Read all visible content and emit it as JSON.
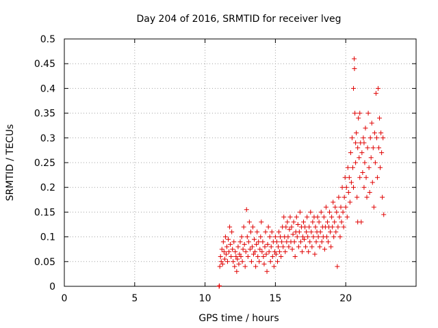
{
  "chart_data": {
    "type": "scatter",
    "title": "Day 204 of 2016, SRMTID for receiver lveg",
    "xlabel": "GPS time / hours",
    "ylabel": "SRMTID / TECUs",
    "xlim": [
      0,
      25
    ],
    "ylim": [
      0,
      0.5
    ],
    "xticks": [
      0,
      5,
      10,
      15,
      20
    ],
    "xtick_labels": [
      "0",
      "5",
      "10",
      "15",
      "20"
    ],
    "yticks": [
      0,
      0.05,
      0.1,
      0.15,
      0.2,
      0.25,
      0.3,
      0.35,
      0.4,
      0.45,
      0.5
    ],
    "ytick_labels": [
      "0",
      "0.05",
      "0.1",
      "0.15",
      "0.2",
      "0.25",
      "0.3",
      "0.35",
      "0.4",
      "0.45",
      "0.5"
    ],
    "grid": true,
    "marker": "+",
    "color": "#e00000",
    "series": [
      {
        "name": "SRMTID",
        "points": [
          [
            11.0,
            0.0
          ],
          [
            11.02,
            0.001
          ],
          [
            11.05,
            0.04
          ],
          [
            11.1,
            0.06
          ],
          [
            11.15,
            0.05
          ],
          [
            11.2,
            0.075
          ],
          [
            11.25,
            0.045
          ],
          [
            11.3,
            0.09
          ],
          [
            11.35,
            0.07
          ],
          [
            11.4,
            0.055
          ],
          [
            11.45,
            0.1
          ],
          [
            11.5,
            0.065
          ],
          [
            11.55,
            0.08
          ],
          [
            11.6,
            0.05
          ],
          [
            11.65,
            0.095
          ],
          [
            11.7,
            0.07
          ],
          [
            11.75,
            0.12
          ],
          [
            11.8,
            0.085
          ],
          [
            11.85,
            0.06
          ],
          [
            11.9,
            0.11
          ],
          [
            11.95,
            0.075
          ],
          [
            12.0,
            0.05
          ],
          [
            12.05,
            0.09
          ],
          [
            12.1,
            0.04
          ],
          [
            12.15,
            0.07
          ],
          [
            12.2,
            0.06
          ],
          [
            12.25,
            0.03
          ],
          [
            12.3,
            0.055
          ],
          [
            12.35,
            0.08
          ],
          [
            12.4,
            0.045
          ],
          [
            12.45,
            0.065
          ],
          [
            12.5,
            0.09
          ],
          [
            12.55,
            0.06
          ],
          [
            12.6,
            0.1
          ],
          [
            12.65,
            0.05
          ],
          [
            12.7,
            0.075
          ],
          [
            12.75,
            0.12
          ],
          [
            12.8,
            0.085
          ],
          [
            12.85,
            0.04
          ],
          [
            12.9,
            0.07
          ],
          [
            12.95,
            0.155
          ],
          [
            13.0,
            0.1
          ],
          [
            13.05,
            0.06
          ],
          [
            13.1,
            0.09
          ],
          [
            13.15,
            0.13
          ],
          [
            13.2,
            0.075
          ],
          [
            13.25,
            0.11
          ],
          [
            13.3,
            0.05
          ],
          [
            13.35,
            0.08
          ],
          [
            13.4,
            0.12
          ],
          [
            13.45,
            0.065
          ],
          [
            13.5,
            0.095
          ],
          [
            13.55,
            0.07
          ],
          [
            13.6,
            0.04
          ],
          [
            13.65,
            0.085
          ],
          [
            13.7,
            0.11
          ],
          [
            13.75,
            0.06
          ],
          [
            13.8,
            0.09
          ],
          [
            13.85,
            0.05
          ],
          [
            13.9,
            0.075
          ],
          [
            13.95,
            0.1
          ],
          [
            14.0,
            0.13
          ],
          [
            14.05,
            0.07
          ],
          [
            14.1,
            0.09
          ],
          [
            14.15,
            0.06
          ],
          [
            14.2,
            0.045
          ],
          [
            14.25,
            0.08
          ],
          [
            14.3,
            0.11
          ],
          [
            14.35,
            0.065
          ],
          [
            14.4,
            0.03
          ],
          [
            14.45,
            0.085
          ],
          [
            14.5,
            0.12
          ],
          [
            14.55,
            0.07
          ],
          [
            14.6,
            0.1
          ],
          [
            14.65,
            0.05
          ],
          [
            14.7,
            0.08
          ],
          [
            14.75,
            0.11
          ],
          [
            14.8,
            0.06
          ],
          [
            14.85,
            0.09
          ],
          [
            14.9,
            0.04
          ],
          [
            14.95,
            0.07
          ],
          [
            15.0,
            0.1
          ],
          [
            15.05,
            0.065
          ],
          [
            15.1,
            0.09
          ],
          [
            15.15,
            0.05
          ],
          [
            15.2,
            0.08
          ],
          [
            15.25,
            0.11
          ],
          [
            15.3,
            0.07
          ],
          [
            15.35,
            0.1
          ],
          [
            15.4,
            0.06
          ],
          [
            15.45,
            0.09
          ],
          [
            15.5,
            0.12
          ],
          [
            15.55,
            0.08
          ],
          [
            15.6,
            0.14
          ],
          [
            15.65,
            0.1
          ],
          [
            15.7,
            0.07
          ],
          [
            15.75,
            0.12
          ],
          [
            15.8,
            0.09
          ],
          [
            15.85,
            0.13
          ],
          [
            15.9,
            0.1
          ],
          [
            15.95,
            0.08
          ],
          [
            16.0,
            0.115
          ],
          [
            16.05,
            0.14
          ],
          [
            16.1,
            0.09
          ],
          [
            16.15,
            0.12
          ],
          [
            16.2,
            0.075
          ],
          [
            16.25,
            0.105
          ],
          [
            16.3,
            0.13
          ],
          [
            16.35,
            0.09
          ],
          [
            16.4,
            0.06
          ],
          [
            16.45,
            0.11
          ],
          [
            16.5,
            0.14
          ],
          [
            16.55,
            0.1
          ],
          [
            16.6,
            0.125
          ],
          [
            16.65,
            0.08
          ],
          [
            16.7,
            0.11
          ],
          [
            16.75,
            0.15
          ],
          [
            16.8,
            0.09
          ],
          [
            16.85,
            0.12
          ],
          [
            16.9,
            0.07
          ],
          [
            16.95,
            0.1
          ],
          [
            17.0,
            0.13
          ],
          [
            17.05,
            0.095
          ],
          [
            17.1,
            0.12
          ],
          [
            17.15,
            0.08
          ],
          [
            17.2,
            0.11
          ],
          [
            17.25,
            0.14
          ],
          [
            17.3,
            0.1
          ],
          [
            17.35,
            0.07
          ],
          [
            17.4,
            0.12
          ],
          [
            17.45,
            0.09
          ],
          [
            17.5,
            0.15
          ],
          [
            17.55,
            0.11
          ],
          [
            17.6,
            0.08
          ],
          [
            17.65,
            0.13
          ],
          [
            17.7,
            0.1
          ],
          [
            17.75,
            0.14
          ],
          [
            17.8,
            0.065
          ],
          [
            17.85,
            0.12
          ],
          [
            17.9,
            0.09
          ],
          [
            17.95,
            0.11
          ],
          [
            18.0,
            0.14
          ],
          [
            18.05,
            0.1
          ],
          [
            18.1,
            0.13
          ],
          [
            18.15,
            0.08
          ],
          [
            18.2,
            0.11
          ],
          [
            18.25,
            0.15
          ],
          [
            18.3,
            0.09
          ],
          [
            18.35,
            0.12
          ],
          [
            18.4,
            0.1
          ],
          [
            18.45,
            0.14
          ],
          [
            18.5,
            0.075
          ],
          [
            18.55,
            0.12
          ],
          [
            18.6,
            0.16
          ],
          [
            18.65,
            0.1
          ],
          [
            18.7,
            0.13
          ],
          [
            18.75,
            0.09
          ],
          [
            18.8,
            0.12
          ],
          [
            18.85,
            0.15
          ],
          [
            18.9,
            0.11
          ],
          [
            18.95,
            0.08
          ],
          [
            19.0,
            0.14
          ],
          [
            19.05,
            0.12
          ],
          [
            19.1,
            0.17
          ],
          [
            19.15,
            0.1
          ],
          [
            19.2,
            0.13
          ],
          [
            19.25,
            0.16
          ],
          [
            19.3,
            0.11
          ],
          [
            19.35,
            0.15
          ],
          [
            19.4,
            0.04
          ],
          [
            19.45,
            0.12
          ],
          [
            19.5,
            0.18
          ],
          [
            19.55,
            0.14
          ],
          [
            19.6,
            0.1
          ],
          [
            19.65,
            0.16
          ],
          [
            19.7,
            0.13
          ],
          [
            19.75,
            0.2
          ],
          [
            19.8,
            0.15
          ],
          [
            19.85,
            0.12
          ],
          [
            19.9,
            0.18
          ],
          [
            19.95,
            0.22
          ],
          [
            20.0,
            0.16
          ],
          [
            20.05,
            0.2
          ],
          [
            20.1,
            0.14
          ],
          [
            20.15,
            0.24
          ],
          [
            20.2,
            0.19
          ],
          [
            20.25,
            0.22
          ],
          [
            20.3,
            0.17
          ],
          [
            20.35,
            0.27
          ],
          [
            20.4,
            0.21
          ],
          [
            20.45,
            0.3
          ],
          [
            20.5,
            0.24
          ],
          [
            20.55,
            0.2
          ],
          [
            20.6,
            0.46
          ],
          [
            20.62,
            0.44
          ],
          [
            20.65,
            0.35
          ],
          [
            20.7,
            0.25
          ],
          [
            20.75,
            0.31
          ],
          [
            20.8,
            0.18
          ],
          [
            20.85,
            0.28
          ],
          [
            20.9,
            0.34
          ],
          [
            20.95,
            0.26
          ],
          [
            21.0,
            0.22
          ],
          [
            21.05,
            0.29
          ],
          [
            21.1,
            0.13
          ],
          [
            21.15,
            0.27
          ],
          [
            21.2,
            0.23
          ],
          [
            21.25,
            0.3
          ],
          [
            21.3,
            0.2
          ],
          [
            21.35,
            0.25
          ],
          [
            21.4,
            0.32
          ],
          [
            21.45,
            0.22
          ],
          [
            21.5,
            0.18
          ],
          [
            21.55,
            0.28
          ],
          [
            21.6,
            0.35
          ],
          [
            21.65,
            0.24
          ],
          [
            21.7,
            0.19
          ],
          [
            21.75,
            0.3
          ],
          [
            21.8,
            0.26
          ],
          [
            21.85,
            0.33
          ],
          [
            21.9,
            0.21
          ],
          [
            21.95,
            0.28
          ],
          [
            22.0,
            0.16
          ],
          [
            22.05,
            0.31
          ],
          [
            22.1,
            0.25
          ],
          [
            22.15,
            0.39
          ],
          [
            22.2,
            0.3
          ],
          [
            22.25,
            0.22
          ],
          [
            22.3,
            0.4
          ],
          [
            22.35,
            0.28
          ],
          [
            22.4,
            0.34
          ],
          [
            22.45,
            0.24
          ],
          [
            22.5,
            0.31
          ],
          [
            22.55,
            0.27
          ],
          [
            22.6,
            0.18
          ],
          [
            22.65,
            0.3
          ],
          [
            22.7,
            0.145
          ],
          [
            20.55,
            0.4
          ],
          [
            20.7,
            0.29
          ],
          [
            21.0,
            0.35
          ],
          [
            20.85,
            0.13
          ],
          [
            21.3,
            0.29
          ]
        ]
      }
    ]
  }
}
